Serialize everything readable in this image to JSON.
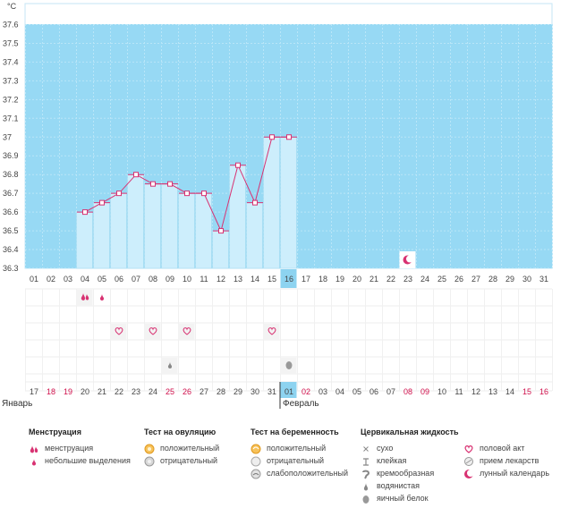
{
  "chart_data": {
    "type": "line",
    "ylabel": "°C",
    "ylim": [
      36.3,
      37.7
    ],
    "yticks": [
      "37.6",
      "37.5",
      "37.4",
      "37.3",
      "37.2",
      "37.1",
      "37",
      "36.9",
      "36.8",
      "36.7",
      "36.6",
      "36.5",
      "36.4",
      "36.3"
    ],
    "x": [
      "01",
      "02",
      "03",
      "04",
      "05",
      "06",
      "07",
      "08",
      "09",
      "10",
      "11",
      "12",
      "13",
      "14",
      "15",
      "16",
      "17",
      "18",
      "19",
      "20",
      "21",
      "22",
      "23",
      "24",
      "25",
      "26",
      "27",
      "28",
      "29",
      "30",
      "31"
    ],
    "current_day": "16",
    "temperature_series": {
      "days": [
        "04",
        "05",
        "06",
        "07",
        "08",
        "09",
        "10",
        "11",
        "12",
        "13",
        "14",
        "15",
        "16"
      ],
      "values": [
        36.6,
        36.65,
        36.7,
        36.8,
        36.75,
        36.75,
        36.7,
        36.7,
        36.5,
        36.85,
        36.65,
        37.0,
        37.0
      ]
    },
    "lunar_calendar_day": "23",
    "menstruation_days": [
      "04"
    ],
    "spotting_days": [
      "05"
    ],
    "intercourse_days": [
      "06",
      "08",
      "10",
      "15"
    ],
    "cervical_watery_days": [
      "09"
    ],
    "cervical_egg_white_days": [
      "16"
    ],
    "bottom_dates": [
      {
        "d": "17",
        "red": false
      },
      {
        "d": "18",
        "red": true
      },
      {
        "d": "19",
        "red": true
      },
      {
        "d": "20",
        "red": false
      },
      {
        "d": "21",
        "red": false
      },
      {
        "d": "22",
        "red": false
      },
      {
        "d": "23",
        "red": false
      },
      {
        "d": "24",
        "red": false
      },
      {
        "d": "25",
        "red": true
      },
      {
        "d": "26",
        "red": true
      },
      {
        "d": "27",
        "red": false
      },
      {
        "d": "28",
        "red": false
      },
      {
        "d": "29",
        "red": false
      },
      {
        "d": "30",
        "red": false
      },
      {
        "d": "31",
        "red": false
      },
      {
        "d": "01",
        "red": false
      },
      {
        "d": "02",
        "red": true
      },
      {
        "d": "03",
        "red": false
      },
      {
        "d": "04",
        "red": false
      },
      {
        "d": "05",
        "red": false
      },
      {
        "d": "06",
        "red": false
      },
      {
        "d": "07",
        "red": false
      },
      {
        "d": "08",
        "red": true
      },
      {
        "d": "09",
        "red": true
      },
      {
        "d": "10",
        "red": false
      },
      {
        "d": "11",
        "red": false
      },
      {
        "d": "12",
        "red": false
      },
      {
        "d": "13",
        "red": false
      },
      {
        "d": "14",
        "red": false
      },
      {
        "d": "15",
        "red": true
      },
      {
        "d": "16",
        "red": true
      }
    ],
    "months": {
      "january": "Январь",
      "february": "Февраль"
    },
    "colors": {
      "background": "#97d9f4",
      "bar": "#cdeefc",
      "line": "#d83272",
      "highlight": "#8dd3f0",
      "red_text": "#d0104c"
    }
  },
  "legend": {
    "menstruation": {
      "title": "Менструация",
      "items": [
        "менструация",
        "небольшие выделения"
      ]
    },
    "ovulation_test": {
      "title": "Тест на овуляцию",
      "items": [
        "положительный",
        "отрицательный"
      ]
    },
    "pregnancy_test": {
      "title": "Тест на беременность",
      "items": [
        "положительный",
        "отрицательный",
        "слабоположительный"
      ]
    },
    "cervical": {
      "title": "Цервикальная жидкость",
      "items": [
        "сухо",
        "клейкая",
        "кремообразная",
        "водянистая",
        "яичный белок"
      ]
    },
    "other": {
      "items": [
        "половой акт",
        "прием лекарств",
        "лунный календарь"
      ]
    }
  }
}
